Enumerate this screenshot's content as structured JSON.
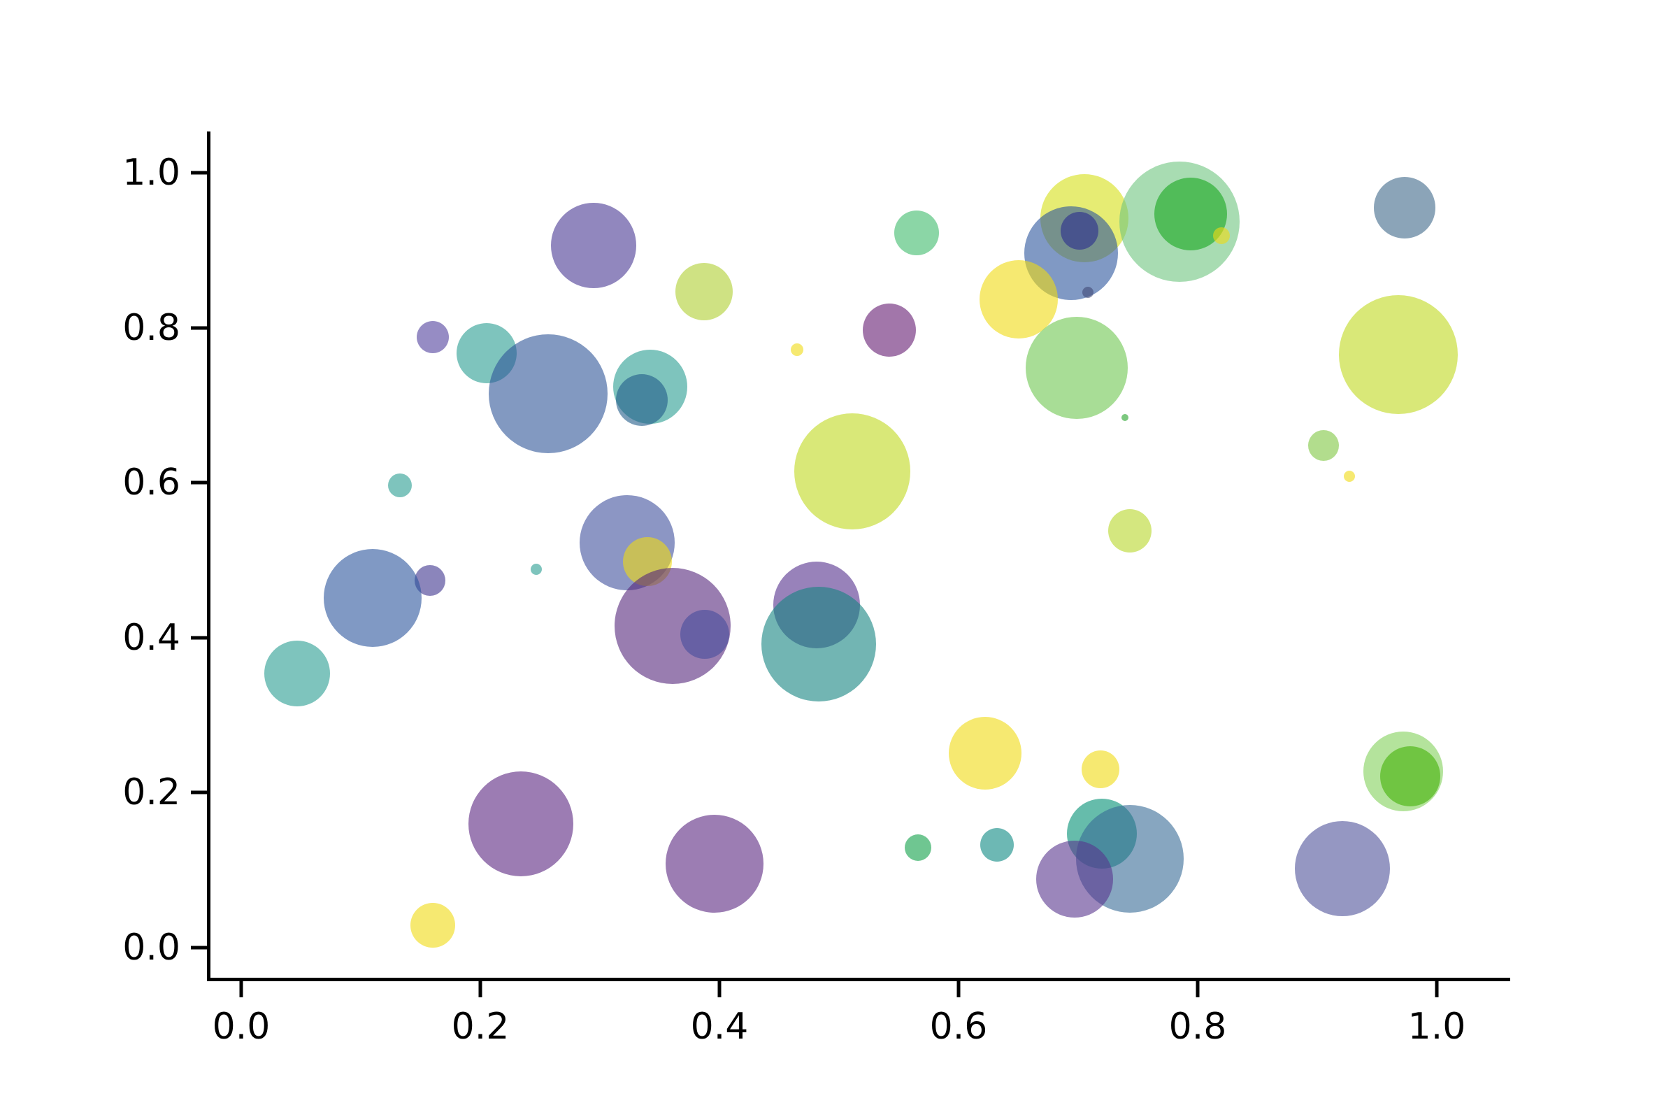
{
  "figure": {
    "background_color": "#ffffff",
    "axis_color": "#000000"
  },
  "chart_data": {
    "type": "scatter",
    "subtype": "bubble",
    "title": "",
    "xlabel": "",
    "ylabel": "",
    "grid": false,
    "legend": null,
    "marker_alpha": 0.6,
    "xlim": [
      -0.027,
      1.062
    ],
    "ylim": [
      -0.041,
      1.053
    ],
    "x_ticks": {
      "values": [
        0.0,
        0.2,
        0.4,
        0.6,
        0.8,
        1.0
      ],
      "labels": [
        "0.0",
        "0.2",
        "0.4",
        "0.6",
        "0.8",
        "1.0"
      ]
    },
    "y_ticks": {
      "values": [
        0.0,
        0.2,
        0.4,
        0.6,
        0.8,
        1.0
      ],
      "labels": [
        "0.0",
        "0.2",
        "0.4",
        "0.6",
        "0.8",
        "1.0"
      ]
    },
    "points": [
      {
        "x": 0.295,
        "y": 0.906,
        "r": 61,
        "color": "#483793"
      },
      {
        "x": 0.387,
        "y": 0.847,
        "r": 41,
        "color": "#AFCF30"
      },
      {
        "x": 0.565,
        "y": 0.922,
        "r": 32,
        "color": "#3EBB6B"
      },
      {
        "x": 0.705,
        "y": 0.941,
        "r": 63,
        "color": "#D5DF16"
      },
      {
        "x": 0.694,
        "y": 0.896,
        "r": 67,
        "color": "#2B559D"
      },
      {
        "x": 0.701,
        "y": 0.925,
        "r": 27,
        "color": "#2A2C8E"
      },
      {
        "x": 0.708,
        "y": 0.846,
        "r": 8,
        "color": "#414977"
      },
      {
        "x": 0.65,
        "y": 0.837,
        "r": 56,
        "color": "#F0DA12"
      },
      {
        "x": 0.785,
        "y": 0.937,
        "r": 86,
        "color": "#6EC57F"
      },
      {
        "x": 0.794,
        "y": 0.947,
        "r": 52,
        "color": "#17A61E"
      },
      {
        "x": 0.82,
        "y": 0.919,
        "r": 12,
        "color": "#F0DA12"
      },
      {
        "x": 0.973,
        "y": 0.955,
        "r": 44,
        "color": "#3E6789"
      },
      {
        "x": 0.542,
        "y": 0.797,
        "r": 38,
        "color": "#641B71"
      },
      {
        "x": 0.465,
        "y": 0.772,
        "r": 9,
        "color": "#F0DA12"
      },
      {
        "x": 0.699,
        "y": 0.748,
        "r": 73,
        "color": "#6EC650"
      },
      {
        "x": 0.968,
        "y": 0.765,
        "r": 85,
        "color": "#C0D91E"
      },
      {
        "x": 0.16,
        "y": 0.788,
        "r": 23,
        "color": "#503F9D"
      },
      {
        "x": 0.205,
        "y": 0.767,
        "r": 43,
        "color": "#289D91"
      },
      {
        "x": 0.257,
        "y": 0.715,
        "r": 85,
        "color": "#2F5598"
      },
      {
        "x": 0.342,
        "y": 0.724,
        "r": 53,
        "color": "#289D91"
      },
      {
        "x": 0.335,
        "y": 0.707,
        "r": 37,
        "color": "#225B89"
      },
      {
        "x": 0.133,
        "y": 0.597,
        "r": 17,
        "color": "#289D91"
      },
      {
        "x": 0.511,
        "y": 0.615,
        "r": 83,
        "color": "#C0D91E"
      },
      {
        "x": 0.743,
        "y": 0.538,
        "r": 31,
        "color": "#B7D72A"
      },
      {
        "x": 0.739,
        "y": 0.684,
        "r": 5,
        "color": "#25A32A"
      },
      {
        "x": 0.905,
        "y": 0.648,
        "r": 22,
        "color": "#7FC641"
      },
      {
        "x": 0.927,
        "y": 0.608,
        "r": 8,
        "color": "#F0DA12"
      },
      {
        "x": 0.323,
        "y": 0.523,
        "r": 68,
        "color": "#3F509D"
      },
      {
        "x": 0.34,
        "y": 0.498,
        "r": 35,
        "color": "#F0DA12"
      },
      {
        "x": 0.247,
        "y": 0.488,
        "r": 8,
        "color": "#289D91"
      },
      {
        "x": 0.158,
        "y": 0.474,
        "r": 22,
        "color": "#3E348E"
      },
      {
        "x": 0.11,
        "y": 0.451,
        "r": 70,
        "color": "#2B559D"
      },
      {
        "x": 0.361,
        "y": 0.415,
        "r": 83,
        "color": "#55267B"
      },
      {
        "x": 0.388,
        "y": 0.404,
        "r": 35,
        "color": "#464D9C"
      },
      {
        "x": 0.481,
        "y": 0.442,
        "r": 62,
        "color": "#532F8C"
      },
      {
        "x": 0.483,
        "y": 0.392,
        "r": 82,
        "color": "#148480"
      },
      {
        "x": 0.047,
        "y": 0.354,
        "r": 47,
        "color": "#289D91"
      },
      {
        "x": 0.622,
        "y": 0.251,
        "r": 52,
        "color": "#F0DA12"
      },
      {
        "x": 0.719,
        "y": 0.23,
        "r": 27,
        "color": "#F0DA12"
      },
      {
        "x": 0.566,
        "y": 0.129,
        "r": 19,
        "color": "#0FA048"
      },
      {
        "x": 0.632,
        "y": 0.133,
        "r": 24,
        "color": "#0C8982"
      },
      {
        "x": 0.72,
        "y": 0.147,
        "r": 50,
        "color": "#008F73"
      },
      {
        "x": 0.743,
        "y": 0.115,
        "r": 77,
        "color": "#376B96"
      },
      {
        "x": 0.697,
        "y": 0.088,
        "r": 55,
        "color": "#58358E"
      },
      {
        "x": 0.234,
        "y": 0.16,
        "r": 75,
        "color": "#5A2580"
      },
      {
        "x": 0.396,
        "y": 0.108,
        "r": 70,
        "color": "#5A2680"
      },
      {
        "x": 0.972,
        "y": 0.227,
        "r": 57,
        "color": "#82D05A"
      },
      {
        "x": 0.978,
        "y": 0.221,
        "r": 43,
        "color": "#43B107"
      },
      {
        "x": 0.921,
        "y": 0.102,
        "r": 68,
        "color": "#4E5299"
      },
      {
        "x": 0.16,
        "y": 0.029,
        "r": 32,
        "color": "#F0DA12"
      }
    ]
  }
}
